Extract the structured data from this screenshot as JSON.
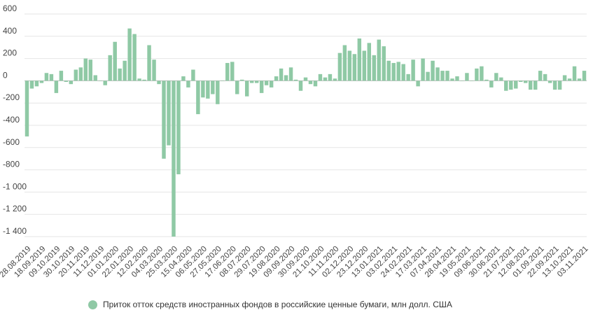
{
  "chart_data": {
    "type": "bar",
    "title": "",
    "xlabel": "",
    "ylabel": "",
    "ylim": [
      -1400,
      600
    ],
    "yticks": [
      600,
      400,
      200,
      0,
      -200,
      -400,
      -600,
      -800,
      -1000,
      -1200,
      -1400
    ],
    "ytick_labels": [
      "600",
      "400",
      "200",
      "0",
      "-200",
      "-400",
      "-600",
      "-800",
      "-1 000",
      "-1 200",
      "-1 400"
    ],
    "x_tick_labels": [
      "28.08.2019",
      "18.09.2019",
      "09.10.2019",
      "30.10.2019",
      "20.11.2019",
      "11.12.2019",
      "01.01.2020",
      "22.01.2020",
      "12.02.2020",
      "04.03.2020",
      "25.03.2020",
      "15.04.2020",
      "06.05.2020",
      "27.05.2020",
      "17.06.2020",
      "08.07.2020",
      "29.07.2020",
      "19.08.2020",
      "09.09.2020",
      "30.09.2020",
      "21.10.2020",
      "11.11.2020",
      "02.12.2020",
      "23.12.2020",
      "13.01.2021",
      "03.02.2021",
      "24.02.2021",
      "17.03.2021",
      "07.04.2021",
      "28.04.2021",
      "19.05.2021",
      "09.06.2021",
      "30.06.2021",
      "21.07.2021",
      "12.08.2021",
      "01.09.2021",
      "22.09.2021",
      "13.10.2021",
      "03.11.2021"
    ],
    "tick_every": 3,
    "series": [
      {
        "name": "Приток отток средств иностранных фондов в российские ценные бумаги, млн долл. США",
        "color": "#8fc9a5",
        "values": [
          -500,
          -70,
          -50,
          -20,
          70,
          60,
          -110,
          90,
          -10,
          -30,
          100,
          120,
          200,
          190,
          50,
          0,
          -40,
          230,
          350,
          110,
          180,
          470,
          420,
          20,
          10,
          320,
          190,
          -30,
          -700,
          -580,
          -1400,
          -840,
          40,
          -60,
          100,
          -300,
          -150,
          -160,
          -120,
          -210,
          0,
          160,
          170,
          -120,
          10,
          -140,
          -20,
          -20,
          -110,
          -40,
          -60,
          40,
          110,
          50,
          120,
          10,
          -90,
          30,
          -30,
          -50,
          60,
          30,
          60,
          20,
          250,
          320,
          270,
          240,
          380,
          270,
          340,
          230,
          370,
          310,
          180,
          160,
          170,
          150,
          60,
          190,
          -50,
          200,
          80,
          180,
          120,
          90,
          90,
          20,
          40,
          0,
          70,
          0,
          110,
          130,
          10,
          -60,
          70,
          30,
          -90,
          -80,
          -70,
          -10,
          -20,
          -80,
          -80,
          90,
          60,
          -20,
          -80,
          -80,
          50,
          20,
          130,
          20,
          90
        ]
      }
    ]
  },
  "legend": {
    "label": "Приток отток средств иностранных фондов в российские ценные бумаги, млн долл. США",
    "color": "#8fc9a5"
  }
}
